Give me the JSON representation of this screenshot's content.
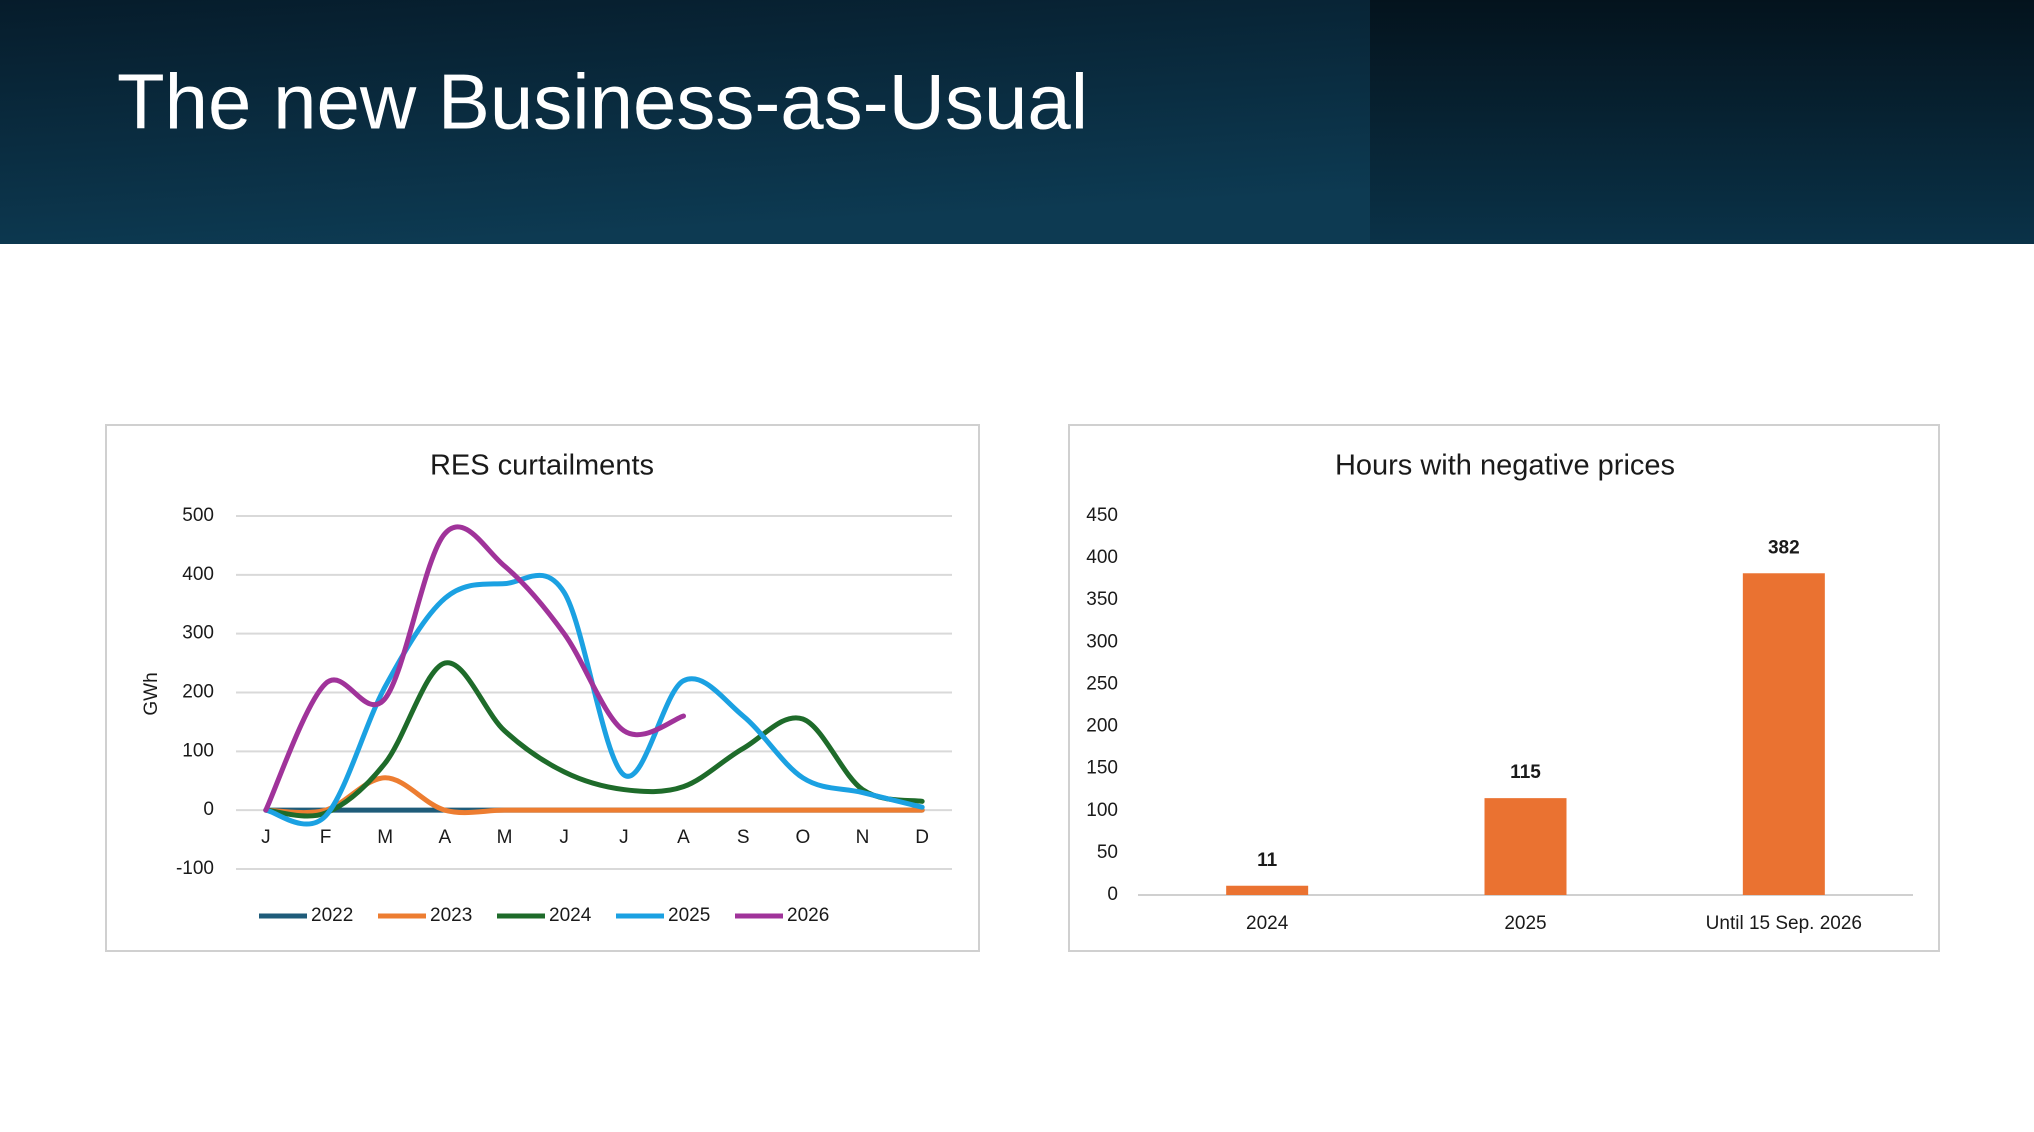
{
  "title": "The new Business-as-Usual",
  "chart_data": [
    {
      "type": "line",
      "title": "RES curtailments",
      "y_label": "GWh",
      "categories": [
        "J",
        "F",
        "M",
        "A",
        "M",
        "J",
        "J",
        "A",
        "S",
        "O",
        "N",
        "D"
      ],
      "series": [
        {
          "name": "2022",
          "color": "#1f5c7a",
          "values": [
            0,
            0,
            0,
            0,
            0,
            0,
            0,
            0,
            0,
            0,
            0,
            0
          ]
        },
        {
          "name": "2023",
          "color": "#ed7d31",
          "values": [
            0,
            0,
            55,
            0,
            0,
            0,
            0,
            0,
            0,
            0,
            0,
            0
          ]
        },
        {
          "name": "2024",
          "color": "#1e6b2a",
          "values": [
            0,
            -5,
            80,
            250,
            135,
            65,
            35,
            40,
            105,
            155,
            35,
            15
          ]
        },
        {
          "name": "2025",
          "color": "#1ba1e2",
          "values": [
            0,
            -10,
            210,
            360,
            385,
            370,
            60,
            220,
            160,
            55,
            30,
            5
          ]
        },
        {
          "name": "2026",
          "color": "#a0339a",
          "values": [
            0,
            215,
            190,
            470,
            415,
            300,
            135,
            160,
            null,
            null,
            null,
            null
          ]
        }
      ],
      "ylim": [
        -100,
        500
      ],
      "yticks": [
        -100,
        0,
        100,
        200,
        300,
        400,
        500
      ],
      "grid": true,
      "legend": "bottom"
    },
    {
      "type": "bar",
      "title": "Hours with negative prices",
      "categories": [
        "2024",
        "2025",
        "Until 15 Sep. 2026"
      ],
      "values": [
        11,
        115,
        382
      ],
      "color": "#ea7231",
      "ylim": [
        0,
        450
      ],
      "yticks": [
        0,
        50,
        100,
        150,
        200,
        250,
        300,
        350,
        400,
        450
      ],
      "grid": false
    }
  ]
}
